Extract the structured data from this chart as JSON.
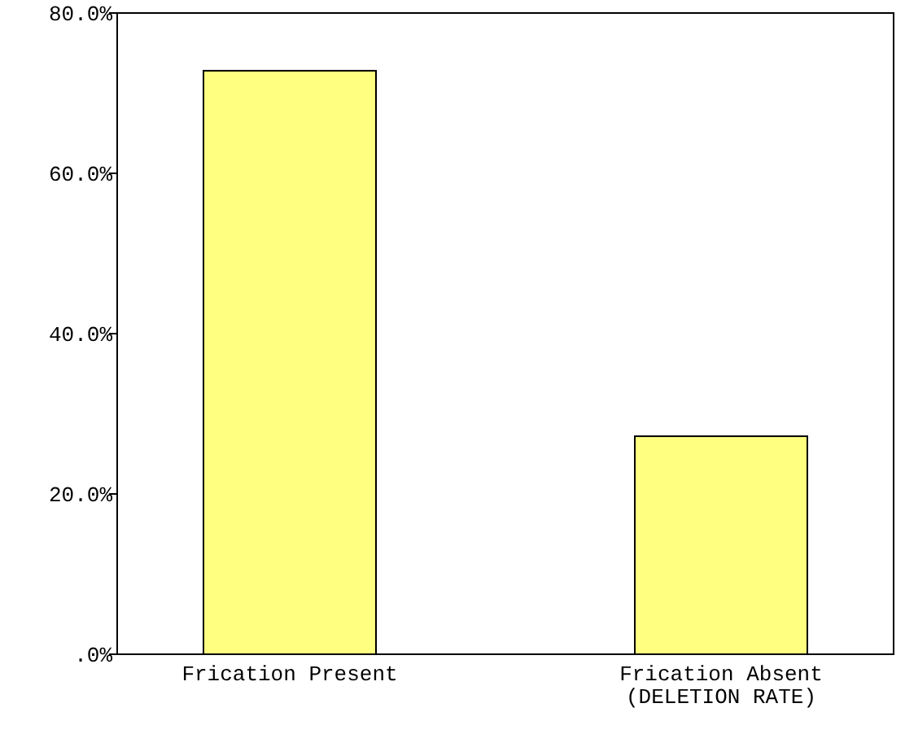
{
  "chart_data": {
    "type": "bar",
    "categories": [
      "Frication Present",
      "Frication Absent\n(DELETION RATE)"
    ],
    "values": [
      72.8,
      27.2
    ],
    "color": "#ffff80",
    "ylim": [
      0,
      80
    ],
    "yticks": [
      {
        "value": 0,
        "label": ".0%"
      },
      {
        "value": 20,
        "label": "20.0%"
      },
      {
        "value": 40,
        "label": "40.0%"
      },
      {
        "value": 60,
        "label": "60.0%"
      },
      {
        "value": 80,
        "label": "80.0%"
      }
    ],
    "grid": false
  }
}
